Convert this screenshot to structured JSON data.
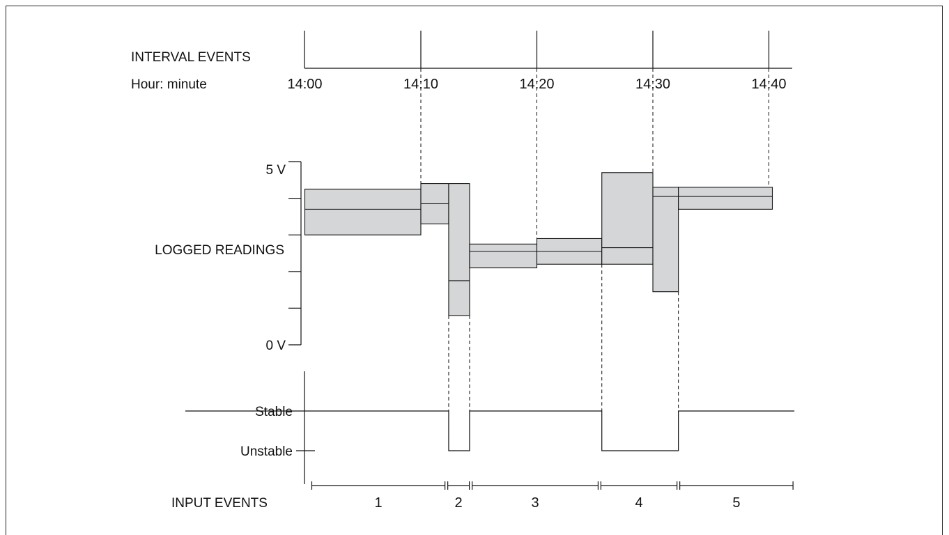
{
  "labels": {
    "interval_events": "INTERVAL EVENTS",
    "hour_minute": "Hour: minute",
    "logged_readings": "LOGGED READINGS",
    "volt_max": "5 V",
    "volt_min": "0 V",
    "stable": "Stable",
    "unstable": "Unstable",
    "input_events": "INPUT EVENTS"
  },
  "time_ticks": [
    "14:00",
    "14:10",
    "14:20",
    "14:30",
    "14:40"
  ],
  "time_range_min": [
    0,
    40
  ],
  "volt_range": [
    0,
    5
  ],
  "logged_readings": [
    {
      "start": 0.0,
      "end": 10.0,
      "min": 3.0,
      "max": 4.25,
      "avg": 3.7
    },
    {
      "start": 10.0,
      "end": 12.4,
      "min": 3.3,
      "max": 4.4,
      "avg": 3.85
    },
    {
      "start": 12.4,
      "end": 14.2,
      "min": 0.8,
      "max": 4.4,
      "avg": 1.75
    },
    {
      "start": 14.2,
      "end": 20.0,
      "min": 2.1,
      "max": 2.75,
      "avg": 2.55
    },
    {
      "start": 20.0,
      "end": 25.6,
      "min": 2.2,
      "max": 2.9,
      "avg": 2.55
    },
    {
      "start": 25.6,
      "end": 30.0,
      "min": 2.2,
      "max": 4.7,
      "avg": 2.65
    },
    {
      "start": 30.0,
      "end": 32.2,
      "min": 1.45,
      "max": 4.3,
      "avg": 4.05
    },
    {
      "start": 32.2,
      "end": 40.3,
      "min": 3.7,
      "max": 4.3,
      "avg": 4.05
    }
  ],
  "input_events": [
    {
      "label": "1",
      "start": 0.6,
      "end": 12.2
    },
    {
      "label": "2",
      "start": 12.2,
      "end": 14.3
    },
    {
      "label": "3",
      "start": 14.3,
      "end": 25.4
    },
    {
      "label": "4",
      "start": 25.4,
      "end": 32.2
    },
    {
      "label": "5",
      "start": 32.2,
      "end": 42.2
    }
  ],
  "stability": [
    {
      "state": "stable",
      "start": -10.3,
      "end": 12.4
    },
    {
      "state": "unstable",
      "start": 12.4,
      "end": 14.2
    },
    {
      "state": "stable",
      "start": 14.2,
      "end": 25.6
    },
    {
      "state": "unstable",
      "start": 25.6,
      "end": 32.2
    },
    {
      "state": "stable",
      "start": 32.2,
      "end": 42.2
    }
  ],
  "colors": {
    "box_fill": "#d5d6d8",
    "stroke": "#111111"
  }
}
